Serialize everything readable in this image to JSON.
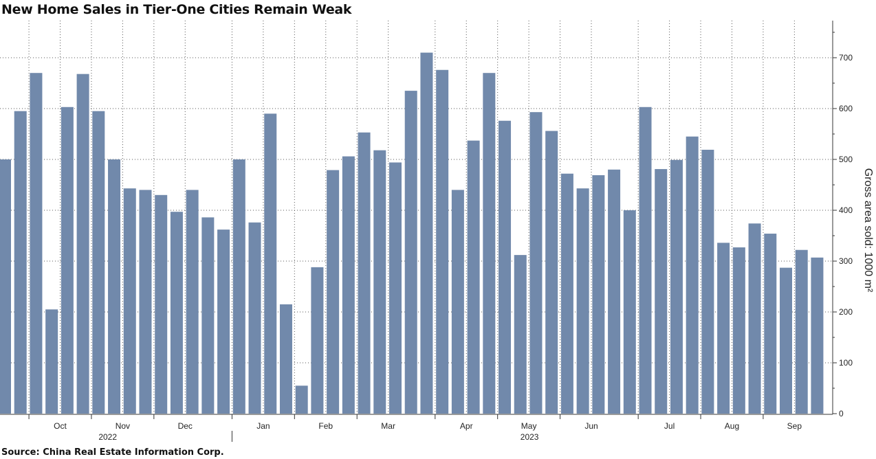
{
  "header": {
    "title": "New Home Sales in Tier-One Cities Remain Weak"
  },
  "footer": {
    "source": "Source: China Real Estate Information Corp."
  },
  "chart_data": {
    "type": "bar",
    "title": "New Home Sales in Tier-One Cities Remain Weak",
    "xlabel": "",
    "ylabel": "Gross area sold: 1000 m²",
    "ylim": [
      0,
      770
    ],
    "yticks": [
      0,
      100,
      200,
      300,
      400,
      500,
      600,
      700
    ],
    "grid": true,
    "bar_color": "#7189ab",
    "grid_color": "#555555",
    "month_labels": [
      {
        "label": "Oct",
        "index": 4
      },
      {
        "label": "Nov",
        "index": 8
      },
      {
        "label": "Dec",
        "index": 12
      },
      {
        "label": "Jan",
        "index": 17
      },
      {
        "label": "Feb",
        "index": 21
      },
      {
        "label": "Mar",
        "index": 25
      },
      {
        "label": "Apr",
        "index": 30
      },
      {
        "label": "May",
        "index": 34
      },
      {
        "label": "Jun",
        "index": 38
      },
      {
        "label": "Jul",
        "index": 43
      },
      {
        "label": "Aug",
        "index": 47
      },
      {
        "label": "Sep",
        "index": 51
      }
    ],
    "year_labels": [
      {
        "label": "2022",
        "index": 7
      },
      {
        "label": "2023",
        "index": 34
      }
    ],
    "values": [
      500,
      595,
      670,
      205,
      603,
      668,
      595,
      500,
      443,
      440,
      430,
      397,
      440,
      386,
      362,
      500,
      376,
      590,
      215,
      55,
      288,
      479,
      506,
      553,
      518,
      494,
      635,
      710,
      676,
      440,
      537,
      670,
      576,
      312,
      593,
      556,
      472,
      443,
      469,
      480,
      400,
      603,
      481,
      499,
      545,
      519,
      336,
      327,
      374,
      354,
      287,
      322,
      307
    ]
  }
}
